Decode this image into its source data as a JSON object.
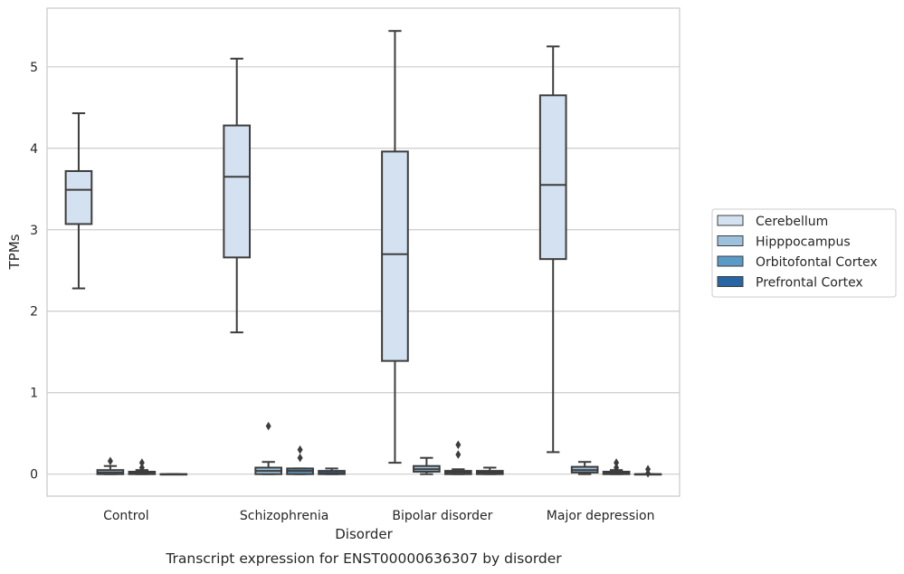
{
  "chart_data": {
    "type": "box",
    "title": "",
    "caption": "Transcript expression for ENST00000636307 by disorder",
    "xlabel": "Disorder",
    "ylabel": "TPMs",
    "ylim": [
      -0.27,
      5.72
    ],
    "yticks": [
      0,
      1,
      2,
      3,
      4,
      5
    ],
    "grid": "horizontal",
    "legend_position": "right",
    "categories": [
      "Control",
      "Schizophrenia",
      "Bipolar disorder",
      "Major depression"
    ],
    "series": [
      {
        "name": "Cerebellum",
        "color": "#d3e1f0",
        "boxes": [
          {
            "whislo": 2.28,
            "q1": 3.07,
            "med": 3.49,
            "q3": 3.72,
            "whishi": 4.43,
            "fliers": []
          },
          {
            "whislo": 1.74,
            "q1": 2.66,
            "med": 3.65,
            "q3": 4.28,
            "whishi": 5.1,
            "fliers": []
          },
          {
            "whislo": 0.14,
            "q1": 1.39,
            "med": 2.7,
            "q3": 3.96,
            "whishi": 5.44,
            "fliers": []
          },
          {
            "whislo": 0.27,
            "q1": 2.64,
            "med": 3.55,
            "q3": 4.65,
            "whishi": 5.25,
            "fliers": []
          }
        ]
      },
      {
        "name": "Hipppocampus",
        "color": "#9dc1dd",
        "boxes": [
          {
            "whislo": 0.0,
            "q1": 0.0,
            "med": 0.02,
            "q3": 0.05,
            "whishi": 0.1,
            "fliers": [
              0.16
            ]
          },
          {
            "whislo": 0.0,
            "q1": 0.0,
            "med": 0.04,
            "q3": 0.08,
            "whishi": 0.15,
            "fliers": [
              0.59
            ]
          },
          {
            "whislo": 0.0,
            "q1": 0.03,
            "med": 0.06,
            "q3": 0.1,
            "whishi": 0.2,
            "fliers": []
          },
          {
            "whislo": 0.0,
            "q1": 0.02,
            "med": 0.05,
            "q3": 0.09,
            "whishi": 0.15,
            "fliers": []
          }
        ]
      },
      {
        "name": "Orbitofontal Cortex",
        "color": "#5a9ac6",
        "boxes": [
          {
            "whislo": 0.0,
            "q1": 0.0,
            "med": 0.01,
            "q3": 0.03,
            "whishi": 0.05,
            "fliers": [
              0.08,
              0.14
            ]
          },
          {
            "whislo": 0.0,
            "q1": 0.0,
            "med": 0.04,
            "q3": 0.07,
            "whishi": 0.07,
            "fliers": [
              0.2,
              0.3
            ]
          },
          {
            "whislo": 0.0,
            "q1": 0.0,
            "med": 0.02,
            "q3": 0.04,
            "whishi": 0.06,
            "fliers": [
              0.24,
              0.36
            ]
          },
          {
            "whislo": 0.0,
            "q1": 0.0,
            "med": 0.01,
            "q3": 0.03,
            "whishi": 0.05,
            "fliers": [
              0.08,
              0.14
            ]
          }
        ]
      },
      {
        "name": "Prefrontal Cortex",
        "color": "#2765a4",
        "boxes": [
          {
            "whislo": 0.0,
            "q1": 0.0,
            "med": 0.0,
            "q3": 0.0,
            "whishi": 0.0,
            "fliers": []
          },
          {
            "whislo": 0.0,
            "q1": 0.0,
            "med": 0.01,
            "q3": 0.04,
            "whishi": 0.07,
            "fliers": []
          },
          {
            "whislo": 0.0,
            "q1": 0.0,
            "med": 0.02,
            "q3": 0.04,
            "whishi": 0.08,
            "fliers": []
          },
          {
            "whislo": 0.0,
            "q1": 0.0,
            "med": 0.0,
            "q3": 0.0,
            "whishi": 0.0,
            "fliers": [
              0.01,
              0.06
            ]
          }
        ]
      }
    ]
  }
}
